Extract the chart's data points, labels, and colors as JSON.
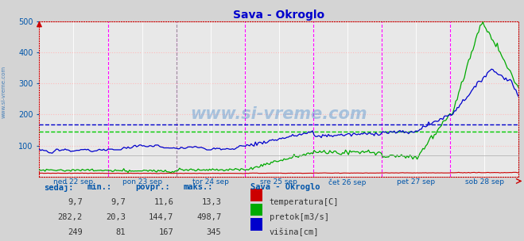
{
  "title": "Sava - Okroglo",
  "title_color": "#0000cc",
  "bg_color": "#d4d4d4",
  "plot_bg_color": "#e8e8e8",
  "grid_color_h": "#ffaaaa",
  "grid_color_v": "#ffffff",
  "ylim": [
    0,
    500
  ],
  "yticks": [
    100,
    200,
    300,
    400,
    500
  ],
  "xlabel_color": "#0055aa",
  "day_labels": [
    "ned 22 sep",
    "pon 23 sep",
    "tor 24 sep",
    "sre 25 sep",
    "čet 26 sep",
    "pet 27 sep",
    "sob 28 sep"
  ],
  "vline_color_day": "#ff00ff",
  "vline_color_mid": "#888888",
  "hline_avg_pretok": 144.7,
  "hline_avg_visina": 167,
  "hline_pretok_color": "#00cc00",
  "hline_visina_color": "#0000cc",
  "temp_color": "#cc0000",
  "pretok_color": "#00aa00",
  "visina_color": "#0000cc",
  "watermark": "www.si-vreme.com",
  "watermark_color": "#4488cc",
  "watermark_alpha": 0.4,
  "sidebar_text": "www.si-vreme.com",
  "sidebar_color": "#0055aa",
  "legend_title": "Sava - Okroglo",
  "legend_labels": [
    "temperatura[C]",
    "pretok[m3/s]",
    "višina[cm]"
  ],
  "legend_colors": [
    "#cc0000",
    "#00aa00",
    "#0000cc"
  ],
  "table_headers": [
    "sedaj:",
    "min.:",
    "povpr.:",
    "maks.:"
  ],
  "table_values": [
    [
      "9,7",
      "9,7",
      "11,6",
      "13,3"
    ],
    [
      "282,2",
      "20,3",
      "144,7",
      "498,7"
    ],
    [
      "249",
      "81",
      "167",
      "345"
    ]
  ],
  "table_color": "#0055aa",
  "n_points": 336
}
